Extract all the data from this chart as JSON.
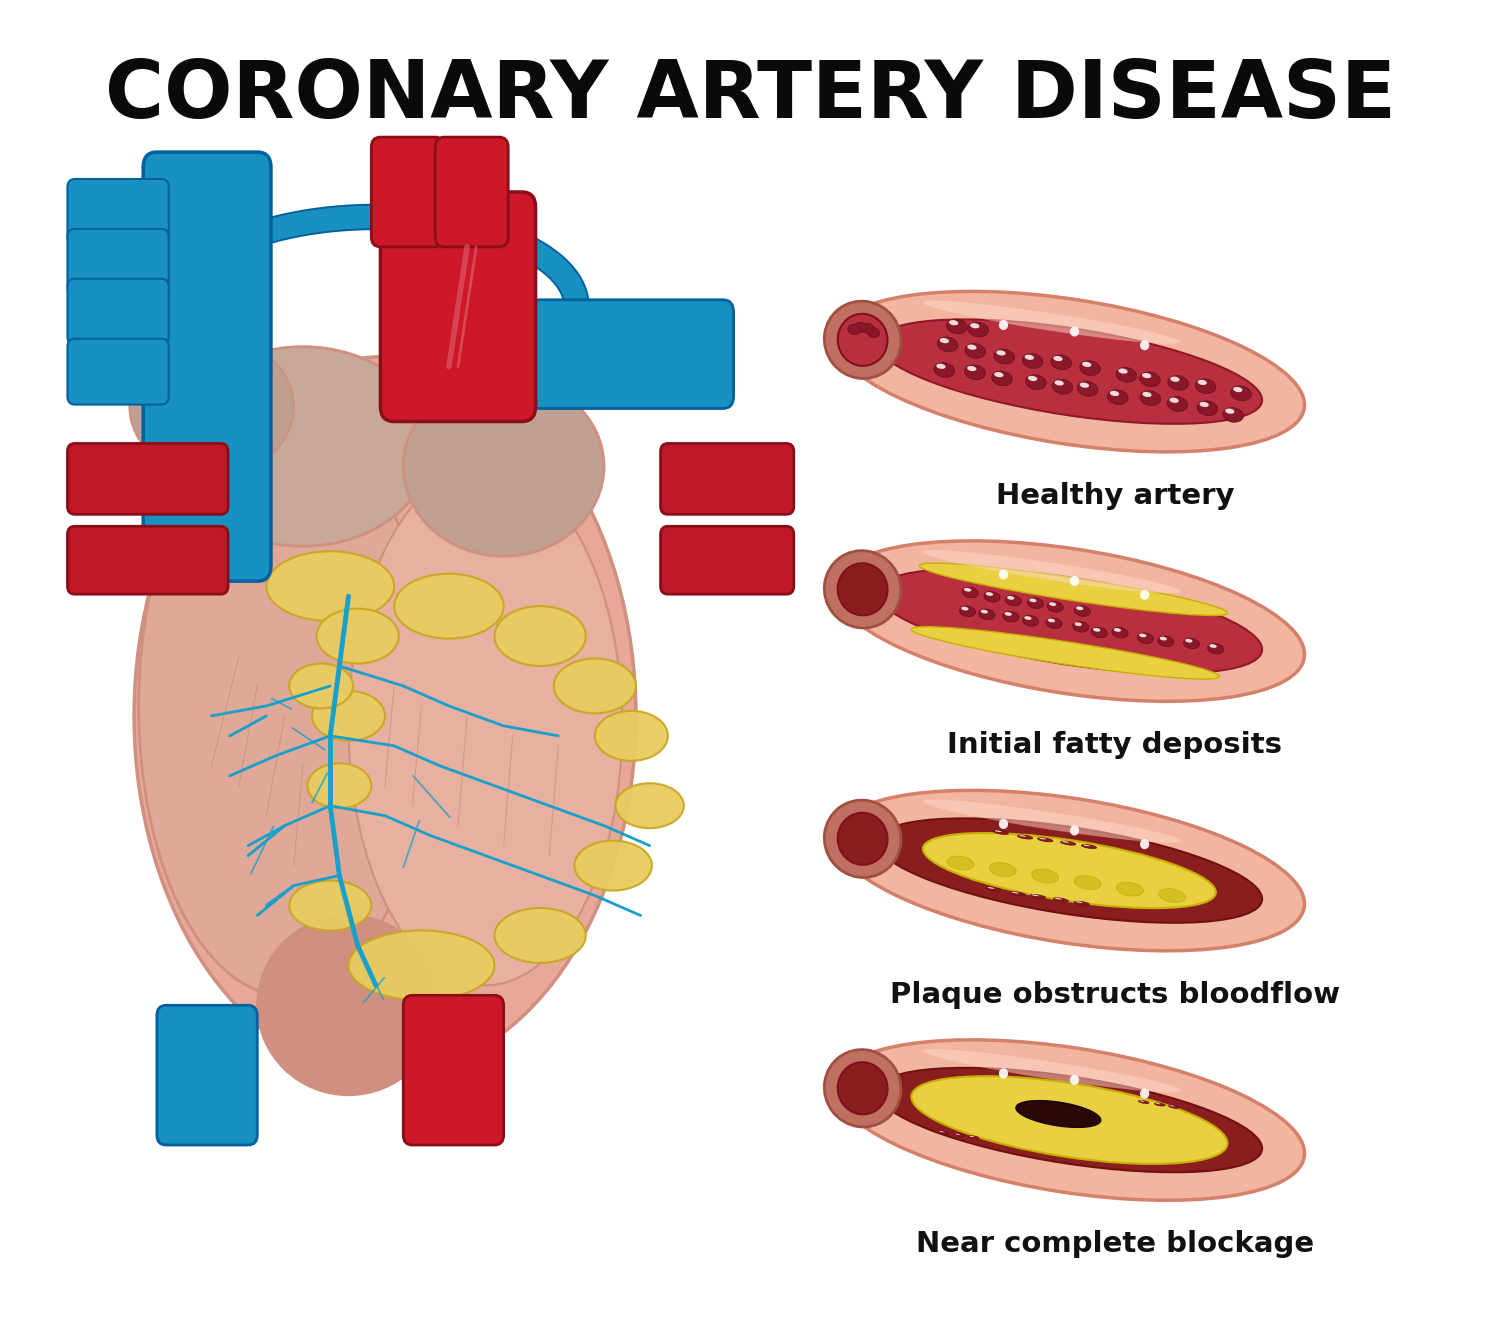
{
  "title": "CORONARY ARTERY DISEASE",
  "title_fontsize": 58,
  "title_fontweight": "bold",
  "title_color": "#0a0a0a",
  "background_color": "#ffffff",
  "artery_labels": [
    "Healthy artery",
    "Initial fatty deposits",
    "Plaque obstructs bloodflow",
    "Near complete blockage"
  ],
  "label_fontsize": 21,
  "label_fontweight": "bold",
  "label_color": "#111111",
  "outer_wall_color": "#f2b5a0",
  "outer_wall_edge": "#d4806a",
  "inner_channel_healthy": "#b83040",
  "inner_channel_blocked": "#8a1e1e",
  "plaque_yellow": "#e8d040",
  "plaque_yellow2": "#c8b000",
  "plaque_bumpy": "#d4c020",
  "rbc_color": "#8a1828",
  "rbc_edge": "#6a0e18",
  "heart_main": "#e8a898",
  "heart_shadow": "#d09080",
  "heart_highlight": "#f0c0b0",
  "aorta_red": "#cc1828",
  "aorta_red_edge": "#8a0e18",
  "aorta_blue": "#1890c0",
  "aorta_blue_edge": "#0060a0",
  "fat_yellow": "#e8cc60",
  "fat_yellow_edge": "#c8a820",
  "vessel_blue": "#18a0cc",
  "vessel_red": "#c01828",
  "clot_dark": "#2a0808"
}
